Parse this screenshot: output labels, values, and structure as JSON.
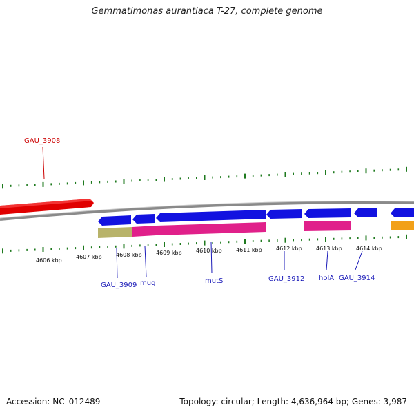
{
  "title": "Gemmatimonas aurantiaca T-27, complete genome",
  "footer": {
    "accession": "Accession: NC_012489",
    "summary": "Topology: circular; Length: 4,636,964 bp; Genes: 3,987"
  },
  "colors": {
    "backbone": "#8a8a8a",
    "tick": "#1f7a1f",
    "forward_gene": "#e00000",
    "reverse_gene": "#1212e0",
    "gene_label": "#1a1ab8",
    "forward_label": "#cc0000",
    "cds_olive": "#b8b36a",
    "cds_pink": "#e0208a",
    "cds_orange": "#f2a018"
  },
  "kbp_labels": [
    "4606 kbp",
    "4607 kbp",
    "4608 kbp",
    "4609 kbp",
    "4610 kbp",
    "4611 kbp",
    "4612 kbp",
    "4613 kbp",
    "4614 kbp"
  ],
  "forward_labels": [
    {
      "text": "GAU_3908"
    }
  ],
  "reverse_labels": [
    {
      "text": "GAU_3909"
    },
    {
      "text": "mug"
    },
    {
      "text": "mutS"
    },
    {
      "text": "GAU_3912"
    },
    {
      "text": "holA"
    },
    {
      "text": "GAU_3914"
    }
  ]
}
